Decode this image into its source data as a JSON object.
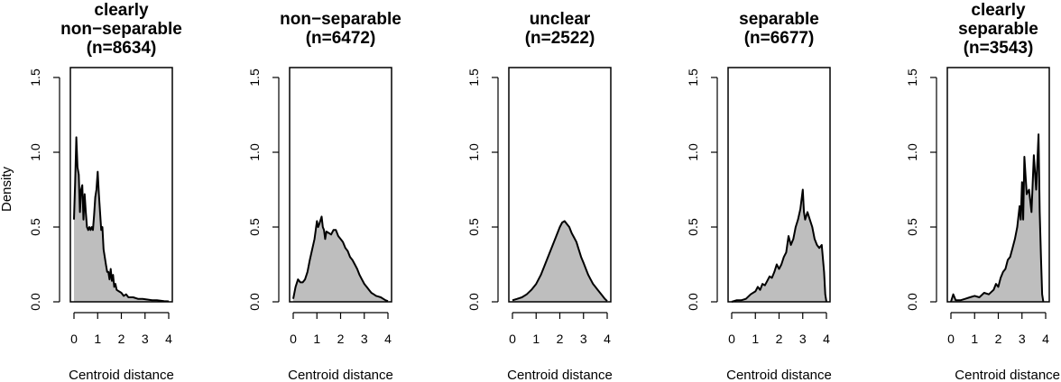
{
  "ylabel_shared": "Density",
  "chart_data": [
    {
      "type": "area",
      "title_lines": [
        "clearly",
        "non−separable",
        "(n=8634)"
      ],
      "xlabel": "Centroid distance",
      "ylabel": "Density",
      "xlim": [
        0,
        4
      ],
      "ylim": [
        0,
        1.5
      ],
      "x_ticks": [
        "0",
        "1",
        "2",
        "3",
        "4"
      ],
      "y_ticks": [
        "0.0",
        "0.5",
        "1.0",
        "1.5"
      ],
      "fill_color": "#bebebe",
      "line_color": "#000000",
      "points": [
        [
          0,
          0.55
        ],
        [
          0.05,
          0.8
        ],
        [
          0.1,
          1.1
        ],
        [
          0.15,
          0.9
        ],
        [
          0.2,
          0.85
        ],
        [
          0.25,
          0.6
        ],
        [
          0.3,
          0.75
        ],
        [
          0.35,
          0.78
        ],
        [
          0.4,
          0.55
        ],
        [
          0.45,
          0.72
        ],
        [
          0.5,
          0.6
        ],
        [
          0.55,
          0.5
        ],
        [
          0.6,
          0.48
        ],
        [
          0.65,
          0.5
        ],
        [
          0.7,
          0.48
        ],
        [
          0.75,
          0.5
        ],
        [
          0.8,
          0.48
        ],
        [
          0.85,
          0.58
        ],
        [
          0.9,
          0.7
        ],
        [
          0.95,
          0.75
        ],
        [
          1.0,
          0.87
        ],
        [
          1.05,
          0.72
        ],
        [
          1.1,
          0.6
        ],
        [
          1.15,
          0.48
        ],
        [
          1.2,
          0.5
        ],
        [
          1.25,
          0.35
        ],
        [
          1.3,
          0.3
        ],
        [
          1.35,
          0.25
        ],
        [
          1.4,
          0.2
        ],
        [
          1.45,
          0.2
        ],
        [
          1.5,
          0.15
        ],
        [
          1.55,
          0.22
        ],
        [
          1.6,
          0.14
        ],
        [
          1.65,
          0.18
        ],
        [
          1.7,
          0.1
        ],
        [
          1.75,
          0.12
        ],
        [
          1.8,
          0.08
        ],
        [
          1.9,
          0.07
        ],
        [
          2.0,
          0.06
        ],
        [
          2.1,
          0.04
        ],
        [
          2.2,
          0.05
        ],
        [
          2.3,
          0.03
        ],
        [
          2.5,
          0.03
        ],
        [
          2.7,
          0.02
        ],
        [
          2.9,
          0.02
        ],
        [
          3.1,
          0.015
        ],
        [
          3.3,
          0.01
        ],
        [
          3.5,
          0.01
        ],
        [
          3.8,
          0.005
        ],
        [
          4.0,
          0.003
        ]
      ]
    },
    {
      "type": "area",
      "title_lines": [
        "non−separable",
        "(n=6472)"
      ],
      "xlabel": "Centroid distance",
      "ylabel": "Density",
      "xlim": [
        0,
        4
      ],
      "ylim": [
        0,
        1.5
      ],
      "x_ticks": [
        "0",
        "1",
        "2",
        "3",
        "4"
      ],
      "y_ticks": [
        "0.0",
        "0.5",
        "1.0",
        "1.5"
      ],
      "fill_color": "#bebebe",
      "line_color": "#000000",
      "points": [
        [
          0,
          0.02
        ],
        [
          0.1,
          0.1
        ],
        [
          0.2,
          0.15
        ],
        [
          0.3,
          0.13
        ],
        [
          0.4,
          0.13
        ],
        [
          0.5,
          0.15
        ],
        [
          0.6,
          0.2
        ],
        [
          0.7,
          0.28
        ],
        [
          0.8,
          0.35
        ],
        [
          0.9,
          0.42
        ],
        [
          1.0,
          0.54
        ],
        [
          1.05,
          0.5
        ],
        [
          1.1,
          0.52
        ],
        [
          1.2,
          0.57
        ],
        [
          1.25,
          0.5
        ],
        [
          1.3,
          0.48
        ],
        [
          1.35,
          0.42
        ],
        [
          1.4,
          0.47
        ],
        [
          1.5,
          0.46
        ],
        [
          1.6,
          0.45
        ],
        [
          1.7,
          0.48
        ],
        [
          1.8,
          0.48
        ],
        [
          1.9,
          0.44
        ],
        [
          2.0,
          0.42
        ],
        [
          2.1,
          0.4
        ],
        [
          2.2,
          0.36
        ],
        [
          2.3,
          0.34
        ],
        [
          2.4,
          0.3
        ],
        [
          2.5,
          0.28
        ],
        [
          2.6,
          0.25
        ],
        [
          2.7,
          0.22
        ],
        [
          2.8,
          0.18
        ],
        [
          2.9,
          0.15
        ],
        [
          3.0,
          0.12
        ],
        [
          3.1,
          0.1
        ],
        [
          3.2,
          0.08
        ],
        [
          3.3,
          0.06
        ],
        [
          3.4,
          0.05
        ],
        [
          3.5,
          0.04
        ],
        [
          3.6,
          0.035
        ],
        [
          3.7,
          0.03
        ],
        [
          3.8,
          0.02
        ],
        [
          3.9,
          0.01
        ],
        [
          4.0,
          0.005
        ]
      ]
    },
    {
      "type": "area",
      "title_lines": [
        "unclear",
        "(n=2522)"
      ],
      "xlabel": "Centroid distance",
      "ylabel": "Density",
      "xlim": [
        0,
        4
      ],
      "ylim": [
        0,
        1.5
      ],
      "x_ticks": [
        "0",
        "1",
        "2",
        "3",
        "4"
      ],
      "y_ticks": [
        "0.0",
        "0.5",
        "1.0",
        "1.5"
      ],
      "fill_color": "#bebebe",
      "line_color": "#000000",
      "points": [
        [
          0,
          0.01
        ],
        [
          0.2,
          0.02
        ],
        [
          0.4,
          0.03
        ],
        [
          0.6,
          0.05
        ],
        [
          0.8,
          0.08
        ],
        [
          1.0,
          0.12
        ],
        [
          1.2,
          0.18
        ],
        [
          1.4,
          0.26
        ],
        [
          1.6,
          0.34
        ],
        [
          1.8,
          0.42
        ],
        [
          2.0,
          0.5
        ],
        [
          2.1,
          0.53
        ],
        [
          2.2,
          0.54
        ],
        [
          2.3,
          0.52
        ],
        [
          2.4,
          0.5
        ],
        [
          2.5,
          0.46
        ],
        [
          2.6,
          0.43
        ],
        [
          2.7,
          0.4
        ],
        [
          2.8,
          0.35
        ],
        [
          2.9,
          0.3
        ],
        [
          3.0,
          0.26
        ],
        [
          3.1,
          0.22
        ],
        [
          3.2,
          0.18
        ],
        [
          3.3,
          0.15
        ],
        [
          3.4,
          0.12
        ],
        [
          3.5,
          0.1
        ],
        [
          3.6,
          0.08
        ],
        [
          3.7,
          0.06
        ],
        [
          3.8,
          0.04
        ],
        [
          3.9,
          0.02
        ],
        [
          4.0,
          0.005
        ]
      ]
    },
    {
      "type": "area",
      "title_lines": [
        "separable",
        "(n=6677)"
      ],
      "xlabel": "Centroid distance",
      "ylabel": "Density",
      "xlim": [
        0,
        4
      ],
      "ylim": [
        0,
        1.5
      ],
      "x_ticks": [
        "0",
        "1",
        "2",
        "3",
        "4"
      ],
      "y_ticks": [
        "0.0",
        "0.5",
        "1.0",
        "1.5"
      ],
      "fill_color": "#bebebe",
      "line_color": "#000000",
      "points": [
        [
          0,
          0
        ],
        [
          0.2,
          0.01
        ],
        [
          0.4,
          0.01
        ],
        [
          0.6,
          0.02
        ],
        [
          0.8,
          0.05
        ],
        [
          1.0,
          0.07
        ],
        [
          1.1,
          0.1
        ],
        [
          1.2,
          0.08
        ],
        [
          1.3,
          0.12
        ],
        [
          1.4,
          0.11
        ],
        [
          1.5,
          0.14
        ],
        [
          1.6,
          0.17
        ],
        [
          1.7,
          0.16
        ],
        [
          1.8,
          0.2
        ],
        [
          1.9,
          0.25
        ],
        [
          2.0,
          0.22
        ],
        [
          2.1,
          0.25
        ],
        [
          2.2,
          0.3
        ],
        [
          2.3,
          0.33
        ],
        [
          2.4,
          0.44
        ],
        [
          2.5,
          0.38
        ],
        [
          2.6,
          0.42
        ],
        [
          2.7,
          0.5
        ],
        [
          2.8,
          0.55
        ],
        [
          2.9,
          0.62
        ],
        [
          3.0,
          0.75
        ],
        [
          3.05,
          0.6
        ],
        [
          3.1,
          0.55
        ],
        [
          3.2,
          0.6
        ],
        [
          3.3,
          0.55
        ],
        [
          3.4,
          0.5
        ],
        [
          3.5,
          0.42
        ],
        [
          3.6,
          0.38
        ],
        [
          3.7,
          0.36
        ],
        [
          3.8,
          0.38
        ],
        [
          3.9,
          0.2
        ],
        [
          3.95,
          0.05
        ],
        [
          4.0,
          0
        ]
      ]
    },
    {
      "type": "area",
      "title_lines": [
        "clearly",
        "separable",
        "(n=3543)"
      ],
      "xlabel": "Centroid distance",
      "ylabel": "Density",
      "xlim": [
        0,
        4
      ],
      "ylim": [
        0,
        1.5
      ],
      "x_ticks": [
        "0",
        "1",
        "2",
        "3",
        "4"
      ],
      "y_ticks": [
        "0.0",
        "0.5",
        "1.0",
        "1.5"
      ],
      "fill_color": "#bebebe",
      "line_color": "#000000",
      "points": [
        [
          0,
          0
        ],
        [
          0.1,
          0.05
        ],
        [
          0.2,
          0.01
        ],
        [
          0.4,
          0.01
        ],
        [
          0.6,
          0.02
        ],
        [
          0.8,
          0.03
        ],
        [
          1.0,
          0.04
        ],
        [
          1.2,
          0.03
        ],
        [
          1.4,
          0.06
        ],
        [
          1.6,
          0.05
        ],
        [
          1.8,
          0.08
        ],
        [
          1.9,
          0.12
        ],
        [
          2.0,
          0.1
        ],
        [
          2.1,
          0.16
        ],
        [
          2.2,
          0.2
        ],
        [
          2.3,
          0.22
        ],
        [
          2.4,
          0.28
        ],
        [
          2.5,
          0.3
        ],
        [
          2.6,
          0.36
        ],
        [
          2.7,
          0.42
        ],
        [
          2.8,
          0.5
        ],
        [
          2.9,
          0.64
        ],
        [
          2.95,
          0.55
        ],
        [
          3.0,
          0.8
        ],
        [
          3.05,
          0.55
        ],
        [
          3.1,
          0.97
        ],
        [
          3.2,
          0.72
        ],
        [
          3.3,
          0.75
        ],
        [
          3.4,
          0.6
        ],
        [
          3.5,
          0.98
        ],
        [
          3.6,
          0.75
        ],
        [
          3.7,
          1.12
        ],
        [
          3.75,
          0.6
        ],
        [
          3.8,
          0.3
        ],
        [
          3.85,
          0.05
        ],
        [
          3.9,
          0
        ]
      ]
    }
  ]
}
